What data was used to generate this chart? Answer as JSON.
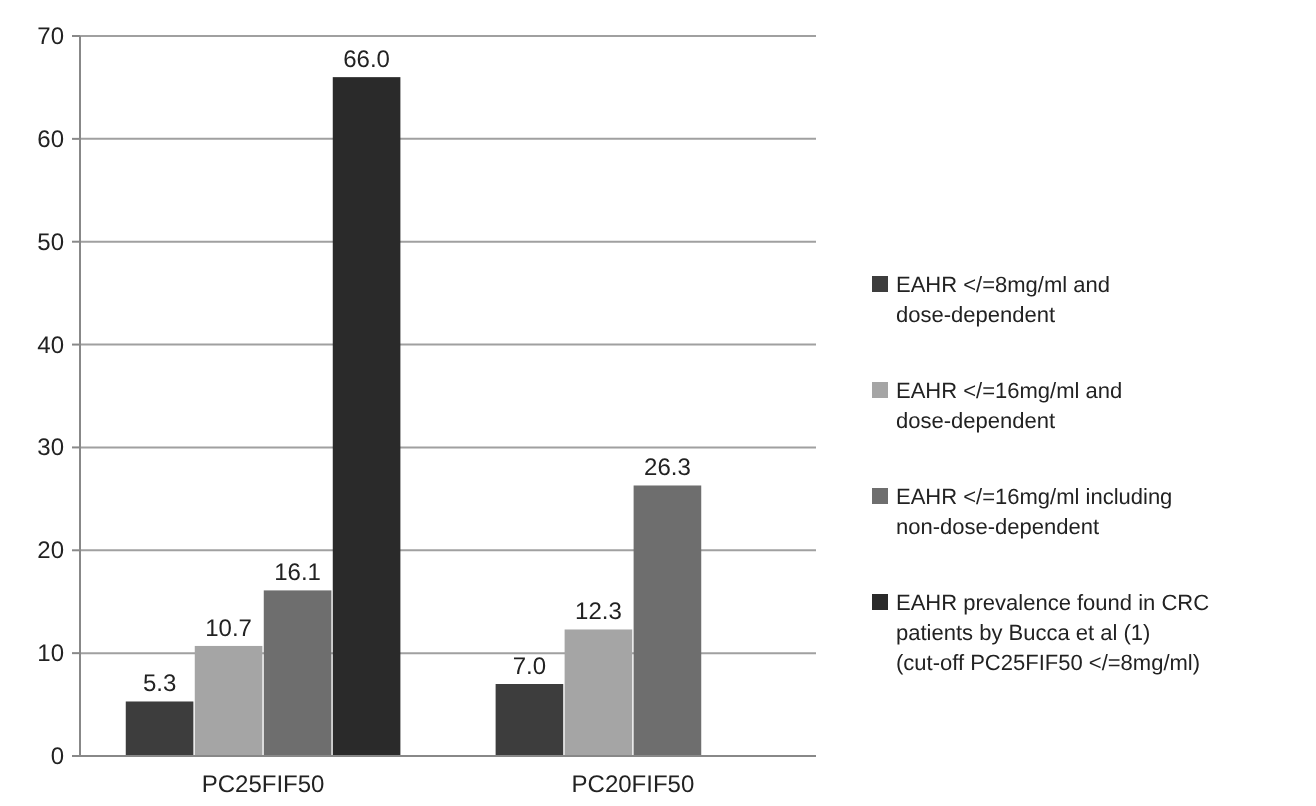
{
  "chart_data": {
    "type": "bar",
    "categories": [
      "PC25FIF50",
      "PC20FIF50"
    ],
    "series": [
      {
        "name": "EAHR </=8mg/ml and dose-dependent",
        "color": "#3d3d3d",
        "values": [
          5.3,
          7.0
        ],
        "value_labels": [
          "5.3",
          "7.0"
        ]
      },
      {
        "name": "EAHR </=16mg/ml and dose-dependent",
        "color": "#a5a5a5",
        "values": [
          10.7,
          12.3
        ],
        "value_labels": [
          "10.7",
          "12.3"
        ]
      },
      {
        "name": "EAHR </=16mg/ml including non-dose-dependent",
        "color": "#6e6e6e",
        "values": [
          16.1,
          26.3
        ],
        "value_labels": [
          "16.1",
          "26.3"
        ]
      },
      {
        "name": "EAHR prevalence found in CRC patients by Bucca et al (1) (cut-off PC25FIF50 </=8mg/ml)",
        "color": "#2a2a2a",
        "values": [
          66.0,
          null
        ],
        "value_labels": [
          "66.0",
          null
        ]
      }
    ],
    "ylim": [
      0,
      70
    ],
    "yticks": [
      0,
      10,
      20,
      30,
      40,
      50,
      60,
      70
    ],
    "grid": "y",
    "legend": "right"
  }
}
